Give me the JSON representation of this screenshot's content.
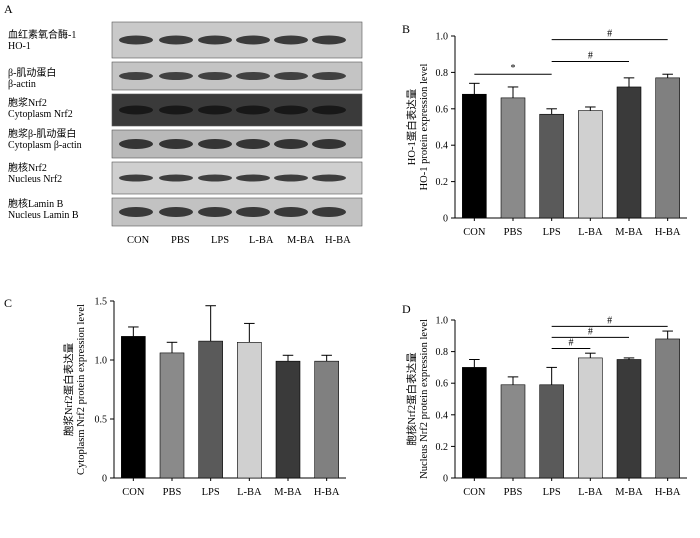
{
  "panelA": {
    "letter": "A",
    "lanes": [
      "CON",
      "PBS",
      "LPS",
      "L-BA",
      "M-BA",
      "H-BA"
    ],
    "blots": [
      {
        "label_cn": "血红素氧合酶-1",
        "label_en": "HO-1"
      },
      {
        "label_cn": "β-肌动蛋白",
        "label_en": "β-actin"
      },
      {
        "label_cn": "胞浆Nrf2",
        "label_en": "Cytoplasm Nrf2"
      },
      {
        "label_cn": "胞浆β-肌动蛋白",
        "label_en": "Cytoplasm β-actin"
      },
      {
        "label_cn": "胞核Nrf2",
        "label_en": "Nucleus Nrf2"
      },
      {
        "label_cn": "胞核Lamin B",
        "label_en": "Nucleus Lamin B"
      }
    ]
  },
  "chart_data": [
    {
      "panel": "B",
      "type": "bar",
      "categories": [
        "CON",
        "PBS",
        "LPS",
        "L-BA",
        "M-BA",
        "H-BA"
      ],
      "values": [
        0.68,
        0.66,
        0.57,
        0.59,
        0.72,
        0.77
      ],
      "errors": [
        0.06,
        0.06,
        0.03,
        0.02,
        0.05,
        0.02
      ],
      "colors": [
        "#000000",
        "#8a8a8a",
        "#5a5a5a",
        "#d0d0d0",
        "#3a3a3a",
        "#808080"
      ],
      "ylabel_cn": "HO-1蛋白表达量",
      "ylabel_en": "HO-1 protein expression level",
      "ylim": [
        0,
        1.0
      ],
      "yticks": [
        "0",
        "0.2",
        "0.4",
        "0.6",
        "0.8",
        "1.0"
      ],
      "ytick_values": [
        0,
        0.2,
        0.4,
        0.6,
        0.8,
        1.0
      ],
      "significance": [
        {
          "from": 0,
          "to": 2,
          "label": "*",
          "y": 0.79
        },
        {
          "from": 2,
          "to": 4,
          "label": "#",
          "y": 0.86
        },
        {
          "from": 2,
          "to": 5,
          "label": "#",
          "y": 0.98
        }
      ]
    },
    {
      "panel": "C",
      "type": "bar",
      "categories": [
        "CON",
        "PBS",
        "LPS",
        "L-BA",
        "M-BA",
        "H-BA"
      ],
      "values": [
        1.2,
        1.06,
        1.16,
        1.15,
        0.99,
        0.99
      ],
      "errors": [
        0.08,
        0.09,
        0.3,
        0.16,
        0.05,
        0.05
      ],
      "colors": [
        "#000000",
        "#8a8a8a",
        "#5a5a5a",
        "#d0d0d0",
        "#3a3a3a",
        "#808080"
      ],
      "ylabel_cn": "胞浆Nrf2蛋白表达量",
      "ylabel_en": "Cytoplasm Nrf2 protein expression level",
      "ylim": [
        0,
        1.5
      ],
      "yticks": [
        "0",
        "0.5",
        "1.0",
        "1.5"
      ],
      "ytick_values": [
        0,
        0.5,
        1.0,
        1.5
      ],
      "significance": []
    },
    {
      "panel": "D",
      "type": "bar",
      "categories": [
        "CON",
        "PBS",
        "LPS",
        "L-BA",
        "M-BA",
        "H-BA"
      ],
      "values": [
        0.7,
        0.59,
        0.59,
        0.76,
        0.75,
        0.88
      ],
      "errors": [
        0.05,
        0.05,
        0.11,
        0.03,
        0.01,
        0.05
      ],
      "colors": [
        "#000000",
        "#8a8a8a",
        "#5a5a5a",
        "#d0d0d0",
        "#3a3a3a",
        "#808080"
      ],
      "ylabel_cn": "胞核Nrf2蛋白表达量",
      "ylabel_en": "Nucleus Nrf2 protein expression level",
      "ylim": [
        0,
        1.0
      ],
      "yticks": [
        "0",
        "0.2",
        "0.4",
        "0.6",
        "0.8",
        "1.0"
      ],
      "ytick_values": [
        0,
        0.2,
        0.4,
        0.6,
        0.8,
        1.0
      ],
      "significance": [
        {
          "from": 2,
          "to": 3,
          "label": "#",
          "y": 0.82
        },
        {
          "from": 2,
          "to": 4,
          "label": "#",
          "y": 0.89
        },
        {
          "from": 2,
          "to": 5,
          "label": "#",
          "y": 0.96
        }
      ]
    }
  ]
}
